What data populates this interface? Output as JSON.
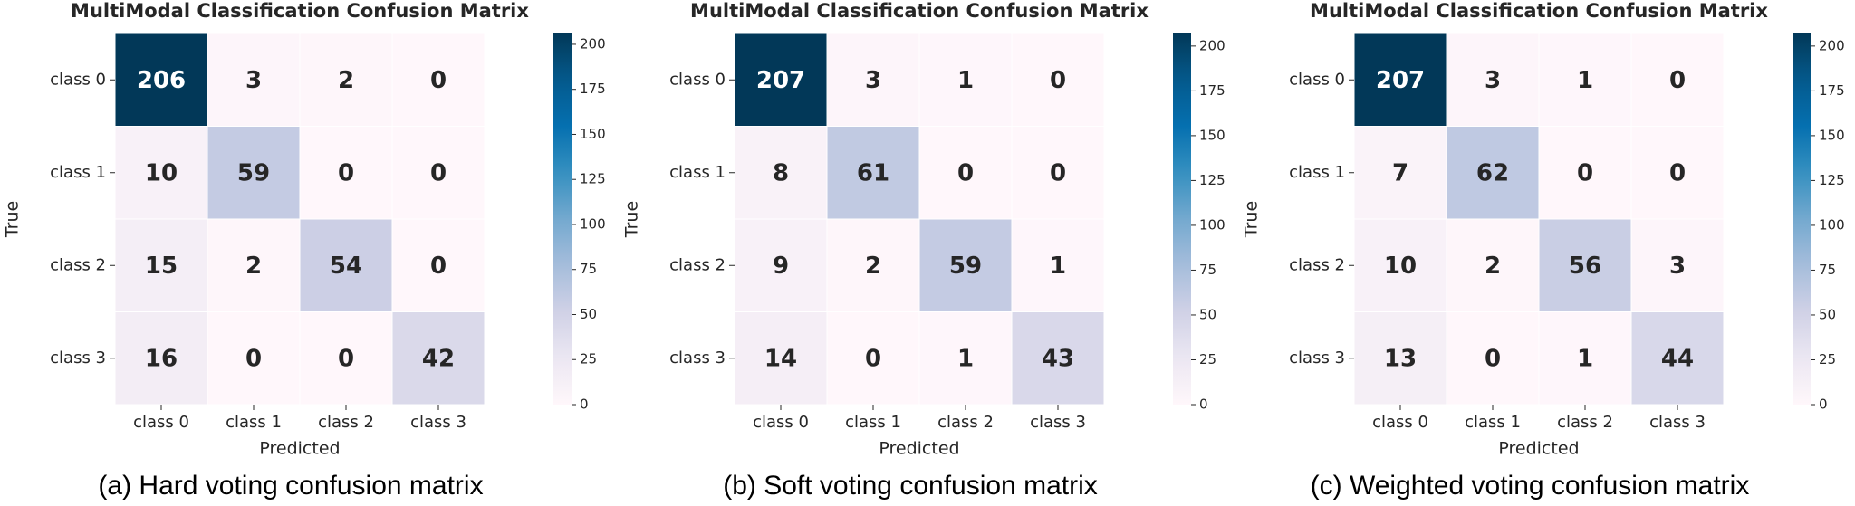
{
  "chart_data": [
    {
      "type": "heatmap",
      "title": "MultiModal Classification Confusion Matrix",
      "xlabel": "Predicted",
      "ylabel": "True",
      "x_categories": [
        "class 0",
        "class 1",
        "class 2",
        "class 3"
      ],
      "y_categories": [
        "class 0",
        "class 1",
        "class 2",
        "class 3"
      ],
      "values": [
        [
          206,
          3,
          2,
          0
        ],
        [
          10,
          59,
          0,
          0
        ],
        [
          15,
          2,
          54,
          0
        ],
        [
          16,
          0,
          0,
          42
        ]
      ],
      "colormap": "PuBu",
      "clim": [
        0,
        206
      ],
      "cticks": [
        0,
        25,
        50,
        75,
        100,
        125,
        150,
        175,
        200
      ],
      "caption": "(a) Hard voting confusion matrix"
    },
    {
      "type": "heatmap",
      "title": "MultiModal Classification Confusion Matrix",
      "xlabel": "Predicted",
      "ylabel": "True",
      "x_categories": [
        "class 0",
        "class 1",
        "class 2",
        "class 3"
      ],
      "y_categories": [
        "class 0",
        "class 1",
        "class 2",
        "class 3"
      ],
      "values": [
        [
          207,
          3,
          1,
          0
        ],
        [
          8,
          61,
          0,
          0
        ],
        [
          9,
          2,
          59,
          1
        ],
        [
          14,
          0,
          1,
          43
        ]
      ],
      "colormap": "PuBu",
      "clim": [
        0,
        207
      ],
      "cticks": [
        0,
        25,
        50,
        75,
        100,
        125,
        150,
        175,
        200
      ],
      "caption": "(b) Soft voting confusion matrix"
    },
    {
      "type": "heatmap",
      "title": "MultiModal Classification Confusion Matrix",
      "xlabel": "Predicted",
      "ylabel": "True",
      "x_categories": [
        "class 0",
        "class 1",
        "class 2",
        "class 3"
      ],
      "y_categories": [
        "class 0",
        "class 1",
        "class 2",
        "class 3"
      ],
      "values": [
        [
          207,
          3,
          1,
          0
        ],
        [
          7,
          62,
          0,
          0
        ],
        [
          10,
          2,
          56,
          3
        ],
        [
          13,
          0,
          1,
          44
        ]
      ],
      "colormap": "PuBu",
      "clim": [
        0,
        207
      ],
      "cticks": [
        0,
        25,
        50,
        75,
        100,
        125,
        150,
        175,
        200
      ],
      "caption": "(c) Weighted voting confusion matrix"
    }
  ]
}
